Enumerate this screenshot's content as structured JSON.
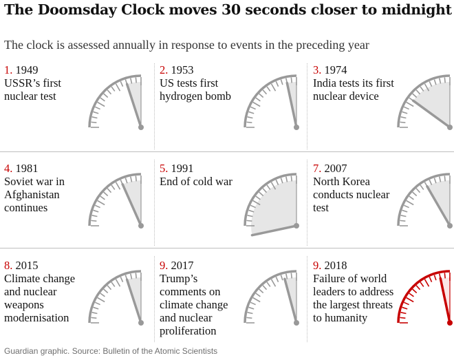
{
  "title": "The Doomsday Clock moves 30 seconds closer to midnight",
  "subtitle": "The clock is assessed annually in response to events in the preceding year",
  "source": "Guardian graphic. Source: Bulletin of the Atomic Scientists",
  "colors": {
    "dial": "#999999",
    "dial_inner": "#e6e6e6",
    "highlight": "#c70000",
    "highlight_inner": "#fbe6e6",
    "rule": "#bdbdbd"
  },
  "chart_data": {
    "type": "gauge",
    "value_unit": "minutes to midnight",
    "panels": [
      {
        "num": "1.",
        "year": "1949",
        "desc": "USSR’s first nuclear test",
        "minutes_to_midnight": 3
      },
      {
        "num": "2.",
        "year": "1953",
        "desc": "US tests first hydrogen bomb",
        "minutes_to_midnight": 2
      },
      {
        "num": "3.",
        "year": "1974",
        "desc": "India tests its first nuclear device",
        "minutes_to_midnight": 9
      },
      {
        "num": "4.",
        "year": "1981",
        "desc": "Soviet war in Afghanistan continues",
        "minutes_to_midnight": 4
      },
      {
        "num": "5.",
        "year": "1991",
        "desc": "End of cold war",
        "minutes_to_midnight": 17
      },
      {
        "num": "7.",
        "year": "2007",
        "desc": "North Korea conducts nuclear test",
        "minutes_to_midnight": 5
      },
      {
        "num": "8.",
        "year": "2015",
        "desc": "Climate change and nuclear weapons modernisation",
        "minutes_to_midnight": 3
      },
      {
        "num": "9.",
        "year": "2017",
        "desc": "Trump’s comments on climate change and nuclear proliferation",
        "minutes_to_midnight": 2.5
      },
      {
        "num": "9.",
        "year": "2018",
        "desc": "Failure of world leaders to address the largest threats to humanity",
        "minutes_to_midnight": 2,
        "highlight": true
      }
    ]
  }
}
